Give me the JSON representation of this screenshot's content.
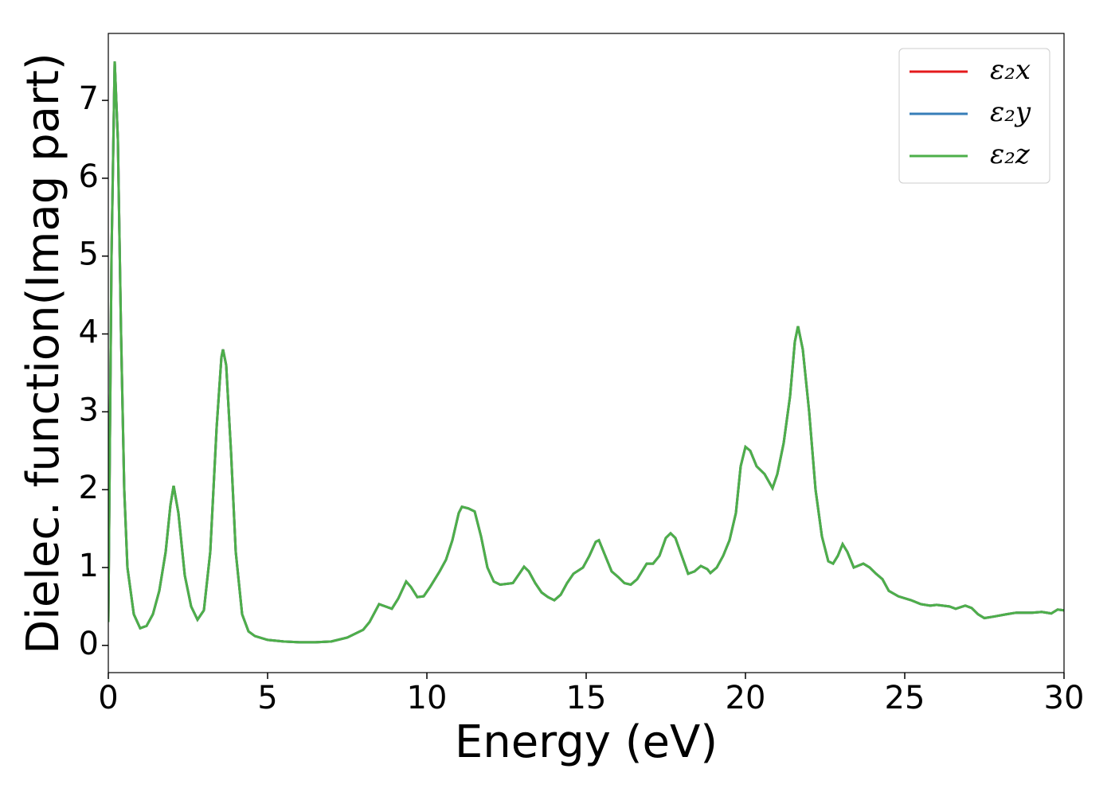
{
  "chart_data": {
    "type": "line",
    "xlabel": "Energy (eV)",
    "ylabel": "Dielec. function(Imag part)",
    "xlim": [
      0,
      30
    ],
    "ylim": [
      -0.35,
      7.86
    ],
    "xticks": [
      0,
      5,
      10,
      15,
      20,
      25,
      30
    ],
    "yticks": [
      0,
      1,
      2,
      3,
      4,
      5,
      6,
      7
    ],
    "legend": "upper right",
    "grid": false,
    "x": [
      0,
      0.1,
      0.2,
      0.3,
      0.4,
      0.5,
      0.6,
      0.8,
      1.0,
      1.2,
      1.4,
      1.6,
      1.8,
      1.95,
      2.05,
      2.2,
      2.4,
      2.6,
      2.8,
      3.0,
      3.2,
      3.4,
      3.55,
      3.6,
      3.7,
      3.85,
      4.0,
      4.2,
      4.4,
      4.6,
      5,
      5.5,
      6,
      6.5,
      7,
      7.5,
      8,
      8.2,
      8.5,
      8.7,
      8.9,
      9.1,
      9.35,
      9.5,
      9.7,
      9.9,
      10.1,
      10.4,
      10.6,
      10.8,
      11.0,
      11.1,
      11.3,
      11.5,
      11.7,
      11.9,
      12.1,
      12.3,
      12.7,
      12.9,
      13.05,
      13.2,
      13.4,
      13.6,
      13.8,
      14.0,
      14.2,
      14.4,
      14.6,
      14.9,
      15.1,
      15.3,
      15.4,
      15.6,
      15.8,
      16.0,
      16.2,
      16.4,
      16.6,
      16.9,
      17.1,
      17.3,
      17.5,
      17.65,
      17.8,
      18.0,
      18.2,
      18.4,
      18.6,
      18.8,
      18.9,
      19.1,
      19.3,
      19.5,
      19.7,
      19.85,
      20.0,
      20.15,
      20.35,
      20.6,
      20.85,
      21.0,
      21.2,
      21.4,
      21.55,
      21.65,
      21.8,
      22.0,
      22.2,
      22.4,
      22.6,
      22.75,
      22.9,
      23.05,
      23.2,
      23.4,
      23.7,
      23.9,
      24.1,
      24.3,
      24.5,
      24.8,
      25.2,
      25.5,
      25.8,
      26.0,
      26.4,
      26.6,
      26.9,
      27.1,
      27.3,
      27.5,
      27.8,
      28.2,
      28.5,
      29.0,
      29.3,
      29.6,
      29.8,
      30
    ],
    "series": [
      {
        "name": "ε₂x",
        "color": "#e41a1c",
        "values": [
          0.3,
          5,
          7.5,
          6.5,
          4,
          2,
          1,
          0.4,
          0.22,
          0.25,
          0.4,
          0.7,
          1.2,
          1.8,
          2.05,
          1.7,
          0.9,
          0.5,
          0.33,
          0.45,
          1.2,
          2.8,
          3.7,
          3.8,
          3.6,
          2.5,
          1.2,
          0.4,
          0.18,
          0.12,
          0.07,
          0.05,
          0.04,
          0.04,
          0.05,
          0.1,
          0.2,
          0.3,
          0.53,
          0.5,
          0.47,
          0.6,
          0.82,
          0.75,
          0.62,
          0.63,
          0.75,
          0.95,
          1.1,
          1.35,
          1.7,
          1.78,
          1.76,
          1.72,
          1.4,
          1.0,
          0.82,
          0.78,
          0.8,
          0.92,
          1.01,
          0.95,
          0.8,
          0.68,
          0.62,
          0.58,
          0.65,
          0.8,
          0.92,
          1.0,
          1.15,
          1.33,
          1.35,
          1.15,
          0.95,
          0.88,
          0.8,
          0.78,
          0.85,
          1.05,
          1.05,
          1.15,
          1.38,
          1.44,
          1.38,
          1.15,
          0.92,
          0.95,
          1.02,
          0.98,
          0.93,
          1.0,
          1.15,
          1.35,
          1.7,
          2.3,
          2.55,
          2.5,
          2.3,
          2.2,
          2.02,
          2.2,
          2.6,
          3.2,
          3.9,
          4.1,
          3.8,
          3.0,
          2.0,
          1.4,
          1.08,
          1.05,
          1.15,
          1.3,
          1.2,
          1.0,
          1.05,
          1.0,
          0.92,
          0.85,
          0.7,
          0.63,
          0.58,
          0.53,
          0.51,
          0.52,
          0.5,
          0.47,
          0.51,
          0.48,
          0.4,
          0.35,
          0.37,
          0.4,
          0.42,
          0.42,
          0.43,
          0.41,
          0.46,
          0.45
        ]
      },
      {
        "name": "ε₂y",
        "color": "#377eb8",
        "values": [
          0.3,
          5,
          7.5,
          6.5,
          4,
          2,
          1,
          0.4,
          0.22,
          0.25,
          0.4,
          0.7,
          1.2,
          1.8,
          2.05,
          1.7,
          0.9,
          0.5,
          0.33,
          0.45,
          1.2,
          2.8,
          3.7,
          3.8,
          3.6,
          2.5,
          1.2,
          0.4,
          0.18,
          0.12,
          0.07,
          0.05,
          0.04,
          0.04,
          0.05,
          0.1,
          0.2,
          0.3,
          0.53,
          0.5,
          0.47,
          0.6,
          0.82,
          0.75,
          0.62,
          0.63,
          0.75,
          0.95,
          1.1,
          1.35,
          1.7,
          1.78,
          1.76,
          1.72,
          1.4,
          1.0,
          0.82,
          0.78,
          0.8,
          0.92,
          1.01,
          0.95,
          0.8,
          0.68,
          0.62,
          0.58,
          0.65,
          0.8,
          0.92,
          1.0,
          1.15,
          1.33,
          1.35,
          1.15,
          0.95,
          0.88,
          0.8,
          0.78,
          0.85,
          1.05,
          1.05,
          1.15,
          1.38,
          1.44,
          1.38,
          1.15,
          0.92,
          0.95,
          1.02,
          0.98,
          0.93,
          1.0,
          1.15,
          1.35,
          1.7,
          2.3,
          2.55,
          2.5,
          2.3,
          2.2,
          2.02,
          2.2,
          2.6,
          3.2,
          3.9,
          4.1,
          3.8,
          3.0,
          2.0,
          1.4,
          1.08,
          1.05,
          1.15,
          1.3,
          1.2,
          1.0,
          1.05,
          1.0,
          0.92,
          0.85,
          0.7,
          0.63,
          0.58,
          0.53,
          0.51,
          0.52,
          0.5,
          0.47,
          0.51,
          0.48,
          0.4,
          0.35,
          0.37,
          0.4,
          0.42,
          0.42,
          0.43,
          0.41,
          0.46,
          0.45
        ]
      },
      {
        "name": "ε₂z",
        "color": "#4daf4a",
        "values": [
          0.3,
          5,
          7.5,
          6.5,
          4,
          2,
          1,
          0.4,
          0.22,
          0.25,
          0.4,
          0.7,
          1.2,
          1.8,
          2.05,
          1.7,
          0.9,
          0.5,
          0.33,
          0.45,
          1.2,
          2.8,
          3.7,
          3.8,
          3.6,
          2.5,
          1.2,
          0.4,
          0.18,
          0.12,
          0.07,
          0.05,
          0.04,
          0.04,
          0.05,
          0.1,
          0.2,
          0.3,
          0.53,
          0.5,
          0.47,
          0.6,
          0.82,
          0.75,
          0.62,
          0.63,
          0.75,
          0.95,
          1.1,
          1.35,
          1.7,
          1.78,
          1.76,
          1.72,
          1.4,
          1.0,
          0.82,
          0.78,
          0.8,
          0.92,
          1.01,
          0.95,
          0.8,
          0.68,
          0.62,
          0.58,
          0.65,
          0.8,
          0.92,
          1.0,
          1.15,
          1.33,
          1.35,
          1.15,
          0.95,
          0.88,
          0.8,
          0.78,
          0.85,
          1.05,
          1.05,
          1.15,
          1.38,
          1.44,
          1.38,
          1.15,
          0.92,
          0.95,
          1.02,
          0.98,
          0.93,
          1.0,
          1.15,
          1.35,
          1.7,
          2.3,
          2.55,
          2.5,
          2.3,
          2.2,
          2.02,
          2.2,
          2.6,
          3.2,
          3.9,
          4.1,
          3.8,
          3.0,
          2.0,
          1.4,
          1.08,
          1.05,
          1.15,
          1.3,
          1.2,
          1.0,
          1.05,
          1.0,
          0.92,
          0.85,
          0.7,
          0.63,
          0.58,
          0.53,
          0.51,
          0.52,
          0.5,
          0.47,
          0.51,
          0.48,
          0.4,
          0.35,
          0.37,
          0.4,
          0.42,
          0.42,
          0.43,
          0.41,
          0.46,
          0.45
        ]
      }
    ]
  }
}
